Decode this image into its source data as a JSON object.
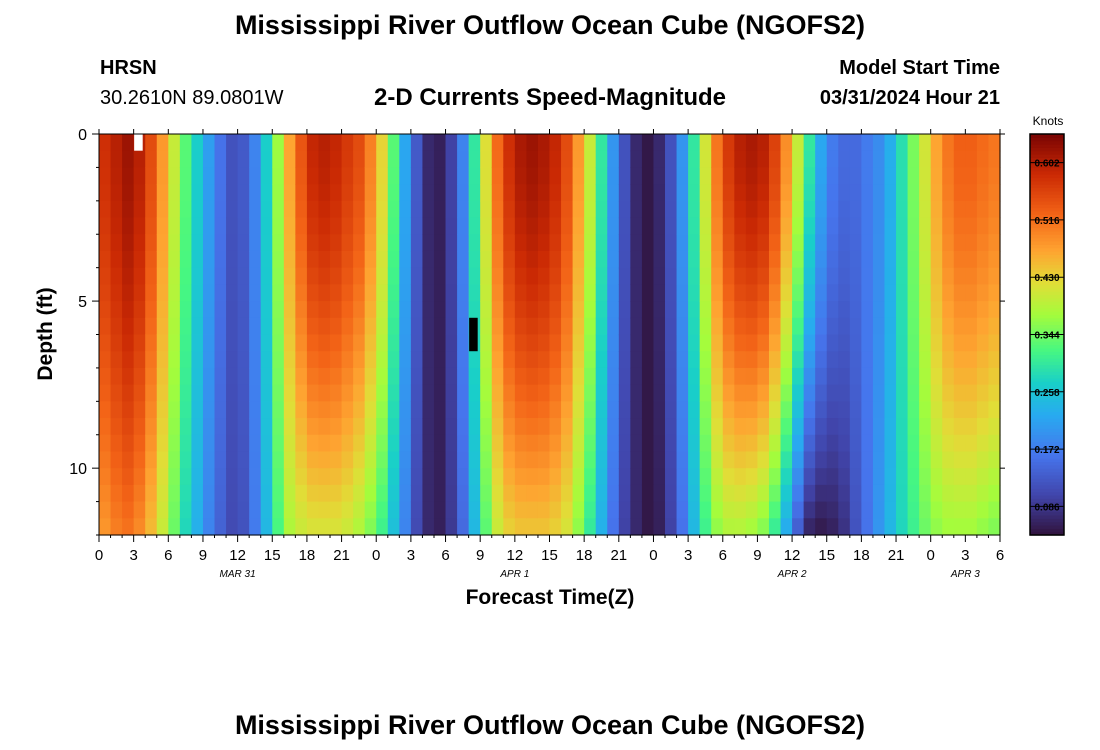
{
  "header": {
    "title": "Mississippi River Outflow Ocean Cube (NGOFS2)",
    "station": "HRSN",
    "coords": "30.2610N  89.0801W",
    "subtitle": "2-D Currents Speed-Magnitude",
    "model_start_label": "Model Start Time",
    "model_start_value": "03/31/2024 Hour 21"
  },
  "footer": {
    "title": "Mississippi River Outflow Ocean Cube (NGOFS2)"
  },
  "chart_data": {
    "type": "heatmap",
    "title": "2-D Currents Speed-Magnitude",
    "xlabel": "Forecast Time(Z)",
    "ylabel": "Depth (ft)",
    "x_range_hours": [
      0,
      78
    ],
    "y_range": [
      0,
      12
    ],
    "x_tick_labels": [
      "0",
      "3",
      "6",
      "9",
      "12",
      "15",
      "18",
      "21",
      "0",
      "3",
      "6",
      "9",
      "12",
      "15",
      "18",
      "21",
      "0",
      "3",
      "6",
      "9",
      "12",
      "15",
      "18",
      "21",
      "0",
      "3",
      "6"
    ],
    "y_ticks": [
      {
        "value": 0,
        "label": "0"
      },
      {
        "value": 5,
        "label": "5"
      },
      {
        "value": 10,
        "label": "10"
      }
    ],
    "date_labels": [
      {
        "hour": 12,
        "label": "MAR 31"
      },
      {
        "hour": 36,
        "label": "APR 1"
      },
      {
        "hour": 60,
        "label": "APR 2"
      },
      {
        "hour": 75,
        "label": "APR 3"
      }
    ],
    "colorbar": {
      "label": "Knots",
      "min": 0.043,
      "max": 0.645,
      "ticks": [
        0.086,
        0.172,
        0.258,
        0.344,
        0.43,
        0.516,
        0.602
      ],
      "tick_labels": [
        "0.086",
        "0.172",
        "0.258",
        "0.344",
        "0.430",
        "0.516",
        "0.602"
      ]
    },
    "grid": {
      "columns_per_hour": 1,
      "depth_rows": 24,
      "surface_speed_knots": [
        0.58,
        0.6,
        0.62,
        0.6,
        0.55,
        0.48,
        0.4,
        0.33,
        0.27,
        0.21,
        0.16,
        0.12,
        0.13,
        0.18,
        0.27,
        0.37,
        0.47,
        0.54,
        0.59,
        0.6,
        0.59,
        0.57,
        0.55,
        0.5,
        0.43,
        0.33,
        0.22,
        0.13,
        0.07,
        0.06,
        0.1,
        0.18,
        0.3,
        0.42,
        0.52,
        0.58,
        0.61,
        0.62,
        0.61,
        0.59,
        0.55,
        0.48,
        0.4,
        0.3,
        0.2,
        0.12,
        0.07,
        0.05,
        0.07,
        0.12,
        0.2,
        0.3,
        0.41,
        0.51,
        0.57,
        0.6,
        0.61,
        0.6,
        0.56,
        0.49,
        0.4,
        0.3,
        0.22,
        0.17,
        0.15,
        0.15,
        0.17,
        0.19,
        0.23,
        0.29,
        0.35,
        0.41,
        0.47,
        0.51,
        0.53,
        0.53,
        0.52,
        0.51
      ],
      "bottom_speed_knots": [
        0.48,
        0.5,
        0.51,
        0.49,
        0.45,
        0.4,
        0.34,
        0.28,
        0.23,
        0.18,
        0.14,
        0.11,
        0.12,
        0.17,
        0.24,
        0.32,
        0.38,
        0.4,
        0.41,
        0.41,
        0.41,
        0.4,
        0.38,
        0.35,
        0.31,
        0.25,
        0.18,
        0.11,
        0.07,
        0.06,
        0.09,
        0.15,
        0.24,
        0.33,
        0.4,
        0.43,
        0.44,
        0.44,
        0.44,
        0.43,
        0.41,
        0.36,
        0.3,
        0.23,
        0.16,
        0.1,
        0.07,
        0.05,
        0.06,
        0.1,
        0.16,
        0.24,
        0.31,
        0.36,
        0.38,
        0.38,
        0.37,
        0.35,
        0.3,
        0.22,
        0.13,
        0.06,
        0.05,
        0.06,
        0.08,
        0.12,
        0.16,
        0.2,
        0.24,
        0.28,
        0.31,
        0.34,
        0.36,
        0.37,
        0.37,
        0.37,
        0.36,
        0.35
      ],
      "depth_shape_exponent": 1.6,
      "missing_cells": [
        {
          "hour": 3,
          "depth_from": 0,
          "depth_to": 0.5
        },
        {
          "hour": 32,
          "depth_from": 5.5,
          "depth_to": 6.5
        }
      ]
    }
  }
}
